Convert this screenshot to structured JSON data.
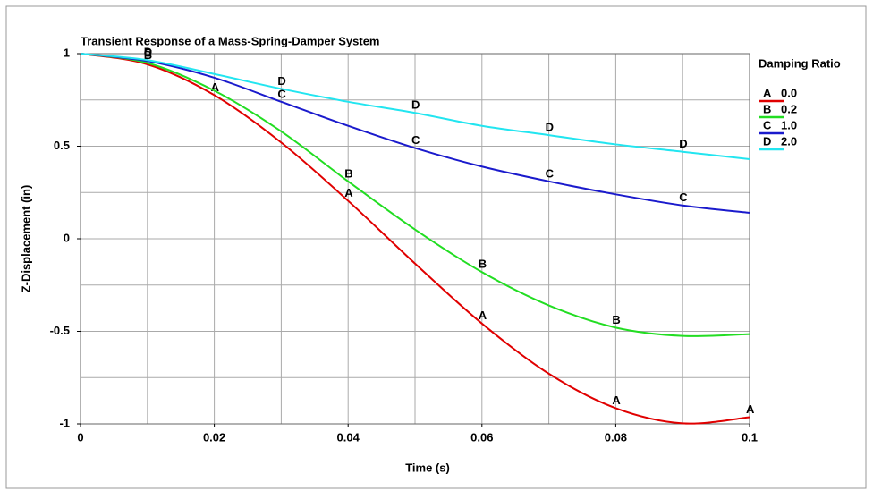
{
  "chart_data": {
    "type": "line",
    "title": "Transient Response of a Mass-Spring-Damper System",
    "x_label": "Time (s)",
    "y_label": "Z-Displacement (in)",
    "legend_title": "Damping Ratio",
    "legend_position": "right",
    "x": [
      0,
      0.01,
      0.02,
      0.03,
      0.04,
      0.05,
      0.06,
      0.07,
      0.08,
      0.09,
      0.1
    ],
    "series": [
      {
        "name": "0.0",
        "symbol": "A",
        "color": "#e00000",
        "values": [
          1,
          0.942,
          0.776,
          0.52,
          0.205,
          -0.134,
          -0.458,
          -0.729,
          -0.915,
          -0.997,
          -0.964
        ]
      },
      {
        "name": "0.2",
        "symbol": "B",
        "color": "#22dd22",
        "values": [
          1,
          0.95,
          0.8,
          0.58,
          0.31,
          0.05,
          -0.18,
          -0.36,
          -0.48,
          -0.525,
          -0.515
        ]
      },
      {
        "name": "1.0",
        "symbol": "C",
        "color": "#1a1acc",
        "values": [
          1,
          0.96,
          0.87,
          0.74,
          0.61,
          0.49,
          0.39,
          0.31,
          0.24,
          0.18,
          0.14
        ]
      },
      {
        "name": "2.0",
        "symbol": "D",
        "color": "#22e5f0",
        "values": [
          1,
          0.965,
          0.89,
          0.81,
          0.74,
          0.68,
          0.61,
          0.56,
          0.51,
          0.47,
          0.43
        ]
      }
    ],
    "xlim": [
      0,
      0.1
    ],
    "ylim": [
      -1,
      1
    ],
    "xticks": [
      0,
      0.02,
      0.04,
      0.06,
      0.08,
      0.1
    ],
    "yticks": [
      -1,
      -0.5,
      0,
      0.5,
      1
    ],
    "xgrid": [
      0,
      0.01,
      0.02,
      0.03,
      0.04,
      0.05,
      0.06,
      0.07,
      0.08,
      0.09,
      0.1
    ],
    "ygrid": [
      -1,
      -0.75,
      -0.5,
      -0.25,
      0,
      0.25,
      0.5,
      0.75,
      1
    ],
    "grid": true
  }
}
